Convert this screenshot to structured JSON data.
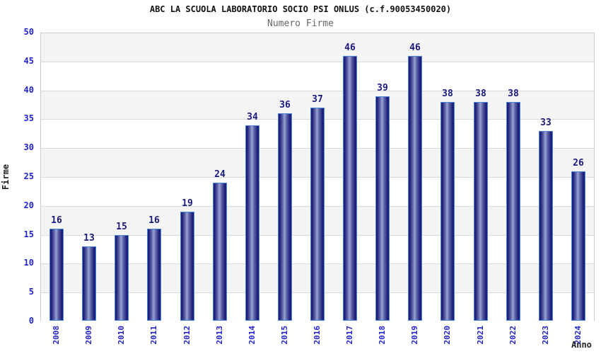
{
  "chart_data": {
    "type": "bar",
    "title": "ABC LA SCUOLA LABORATORIO SOCIO PSI ONLUS (c.f.90053450020)",
    "subtitle": "Numero Firme",
    "xlabel": "Anno",
    "ylabel": "Firme",
    "categories": [
      "2008",
      "2009",
      "2010",
      "2011",
      "2012",
      "2013",
      "2014",
      "2015",
      "2016",
      "2017",
      "2018",
      "2019",
      "2020",
      "2021",
      "2022",
      "2023",
      "2024"
    ],
    "values": [
      16,
      13,
      15,
      16,
      19,
      24,
      34,
      36,
      37,
      46,
      39,
      46,
      38,
      38,
      38,
      33,
      26
    ],
    "ylim": [
      0,
      50
    ],
    "ytick_step": 5,
    "grid": true,
    "legend": "none",
    "colors": {
      "bar_dark": "#1e1e78",
      "bar_mid": "#5a62a8",
      "bar_light": "#9aa2d2",
      "bar_border": "#4d86e0",
      "axis_label": "#2222cc",
      "value_label": "#1a1a7e",
      "band_gray": "#f4f4f4",
      "band_white": "#ffffff",
      "gridline": "#d9d9d9",
      "plot_border": "#cccccc",
      "title": "#111111",
      "subtitle": "#666666",
      "axis_title": "#222222"
    }
  }
}
